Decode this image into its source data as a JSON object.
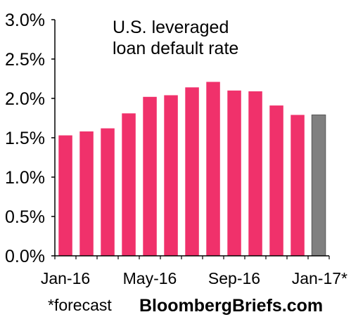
{
  "chart_data": {
    "type": "bar",
    "title_lines": [
      "U.S. leveraged",
      "loan default rate"
    ],
    "xlabel": "",
    "ylabel": "",
    "categories": [
      "Jan-16",
      "Feb-16",
      "Mar-16",
      "Apr-16",
      "May-16",
      "Jun-16",
      "Jul-16",
      "Aug-16",
      "Sep-16",
      "Oct-16",
      "Nov-16",
      "Dec-16",
      "Jan-17*"
    ],
    "x_tick_labels": [
      "Jan-16",
      "May-16",
      "Sep-16",
      "Jan-17*"
    ],
    "x_tick_label_categories": [
      "Jan-16",
      "May-16",
      "Sep-16",
      "Jan-17*"
    ],
    "values": [
      1.53,
      1.58,
      1.62,
      1.81,
      2.02,
      2.04,
      2.14,
      2.21,
      2.1,
      2.09,
      1.91,
      1.79,
      1.79
    ],
    "forecast": [
      false,
      false,
      false,
      false,
      false,
      false,
      false,
      false,
      false,
      false,
      false,
      false,
      true
    ],
    "ylim": [
      0,
      3.0
    ],
    "y_ticks": [
      0,
      0.5,
      1.0,
      1.5,
      2.0,
      2.5,
      3.0
    ],
    "y_tick_labels": [
      "0.0%",
      "0.5%",
      "1.0%",
      "1.5%",
      "2.0%",
      "2.5%",
      "3.0%"
    ],
    "grid": false,
    "colors": {
      "actual": "#f0316b",
      "forecast": "#808080",
      "axis": "#000000"
    }
  },
  "footnote": "*forecast",
  "brand": "BloombergBriefs.com"
}
